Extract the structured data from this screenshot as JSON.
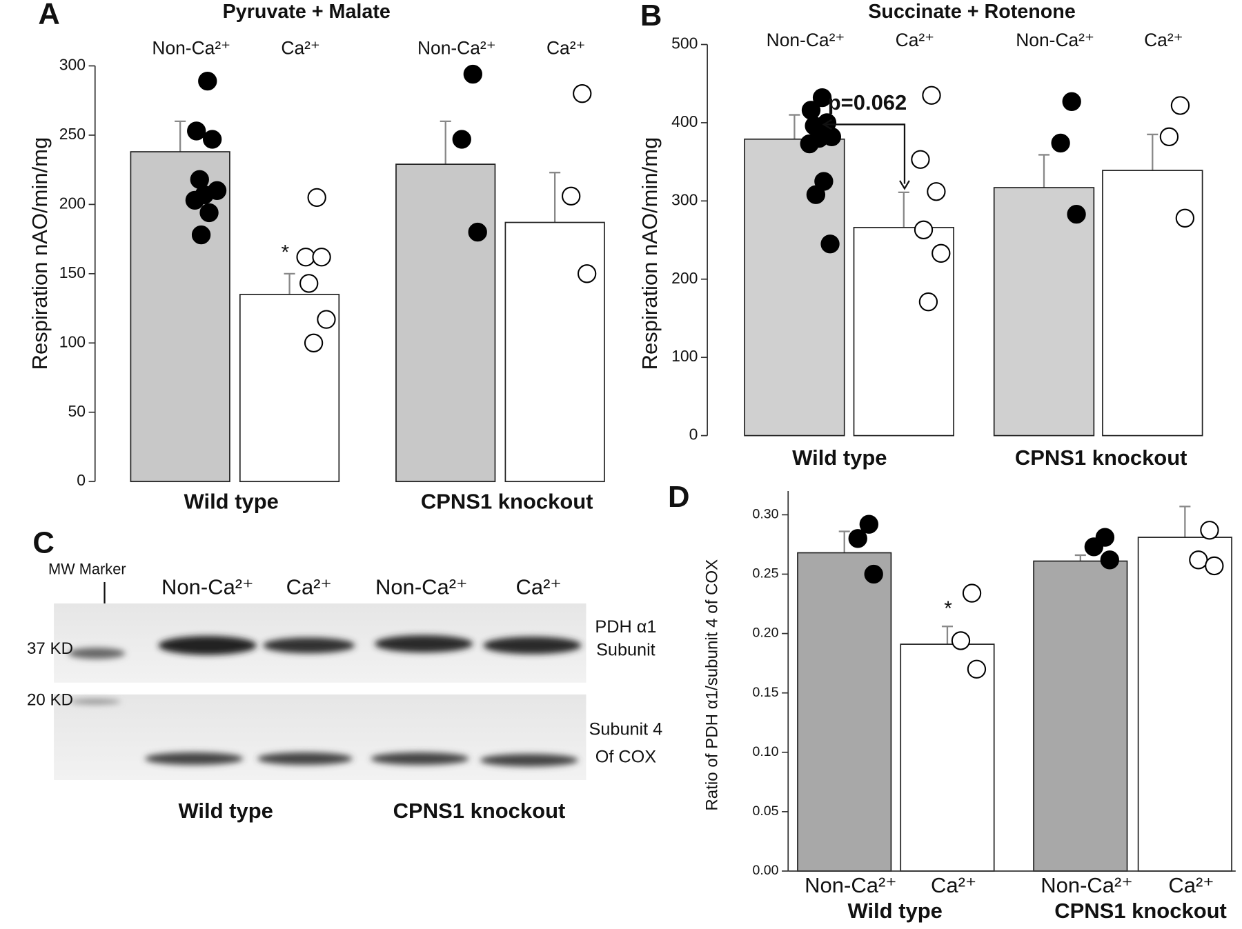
{
  "chart_data": [
    {
      "type": "bar",
      "panel": "A",
      "title": "Pyruvate + Malate",
      "y_label": "Respiration nAO/min/mg",
      "groups": [
        "Wild type",
        "CPNS1 knockout"
      ],
      "series": [
        {
          "name": "Non-Ca²⁺",
          "color": "#c8c8c8",
          "values": [
            238,
            229
          ],
          "errors": [
            22,
            31
          ],
          "points": [
            [
              289,
              253,
              247,
              218,
              210,
              207,
              203,
              194,
              178
            ],
            [
              294,
              247,
              180
            ]
          ]
        },
        {
          "name": "Ca²⁺",
          "color": "#ffffff",
          "values": [
            135,
            187
          ],
          "errors": [
            15,
            36
          ],
          "points": [
            [
              205,
              162,
              162,
              143,
              117,
              100
            ],
            [
              280,
              206,
              150
            ]
          ]
        }
      ],
      "ylim": [
        0,
        300
      ],
      "yticks": [
        0,
        50,
        100,
        150,
        200,
        250,
        300
      ],
      "annotations": [
        {
          "text": "*"
        }
      ]
    },
    {
      "type": "bar",
      "panel": "B",
      "title": "Succinate + Rotenone",
      "y_label": "Respiration nAO/min/mg",
      "groups": [
        "Wild type",
        "CPNS1 knockout"
      ],
      "series": [
        {
          "name": "Non-Ca²⁺",
          "color": "#d0d0d0",
          "values": [
            379,
            317
          ],
          "errors": [
            31,
            42
          ],
          "points": [
            [
              432,
              416,
              400,
              396,
              382,
              380,
              373,
              325,
              308,
              245
            ],
            [
              427,
              374,
              283
            ]
          ]
        },
        {
          "name": "Ca²⁺",
          "color": "#ffffff",
          "values": [
            266,
            339
          ],
          "errors": [
            45,
            46
          ],
          "points": [
            [
              435,
              353,
              312,
              263,
              233,
              171
            ],
            [
              422,
              382,
              278
            ]
          ]
        }
      ],
      "ylim": [
        0,
        500
      ],
      "yticks": [
        0,
        100,
        200,
        300,
        400,
        500
      ],
      "annotations": [
        {
          "text": "p=0.062"
        }
      ]
    },
    {
      "type": "bar",
      "panel": "D",
      "y_label": "Ratio of PDH α1/subunit 4 of COX",
      "groups": [
        "Wild type",
        "CPNS1 knockout"
      ],
      "series": [
        {
          "name": "Non-Ca²⁺",
          "color": "#a8a8a8",
          "values": [
            0.268,
            0.261
          ],
          "errors": [
            0.018,
            0.005
          ],
          "points": [
            [
              0.292,
              0.28,
              0.25
            ],
            [
              0.281,
              0.273,
              0.262
            ]
          ]
        },
        {
          "name": "Ca²⁺",
          "color": "#ffffff",
          "values": [
            0.191,
            0.281
          ],
          "errors": [
            0.015,
            0.026
          ],
          "points": [
            [
              0.234,
              0.194,
              0.17
            ],
            [
              0.287,
              0.262,
              0.257
            ]
          ]
        }
      ],
      "ylim": [
        0,
        0.32
      ],
      "yticks": [
        {
          "value": 0,
          "label": "0.00"
        },
        {
          "value": 0.05,
          "label": "0.05"
        },
        {
          "value": 0.1,
          "label": "0.10"
        },
        {
          "value": 0.15,
          "label": "0.15"
        },
        {
          "value": 0.2,
          "label": "0.20"
        },
        {
          "value": 0.25,
          "label": "0.25"
        },
        {
          "value": 0.3,
          "label": "0.30"
        }
      ],
      "annotations": [
        {
          "text": "*"
        }
      ]
    }
  ],
  "blot": {
    "panel": "C",
    "marker_label": "MW Marker",
    "lanes": [
      "Non-Ca²⁺",
      "Ca²⁺",
      "Non-Ca²⁺",
      "Ca²⁺"
    ],
    "size_labels": [
      "37 KD",
      "20 KD"
    ],
    "band_labels": [
      [
        "PDH α1",
        "Subunit"
      ],
      [
        "Subunit 4",
        "Of COX"
      ]
    ],
    "groups": [
      "Wild type",
      "CPNS1 knockout"
    ]
  }
}
